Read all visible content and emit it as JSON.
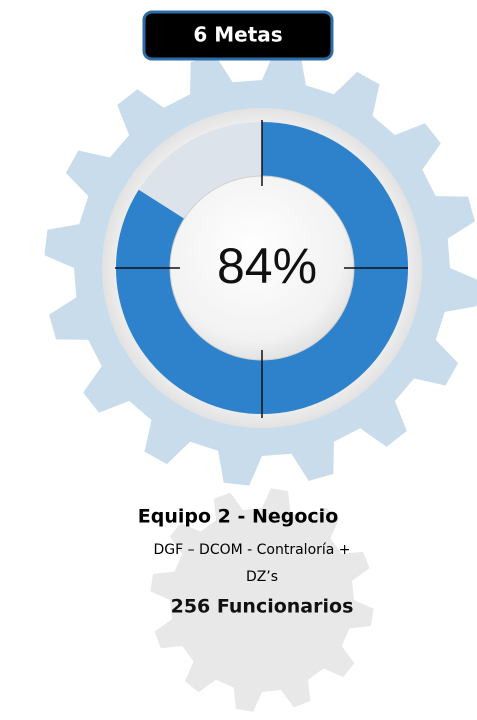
{
  "badge": "6 Metas",
  "gauge": {
    "value": 84,
    "label": "84%",
    "color": "#2e82cc",
    "track_color": "#dde3ea"
  },
  "team": {
    "name": "Equipo 2  - Negocio",
    "units_line1": "DGF – DCOM - Contraloría  +",
    "units_line2": "DZ’s",
    "staff": "256 Funcionarios"
  }
}
